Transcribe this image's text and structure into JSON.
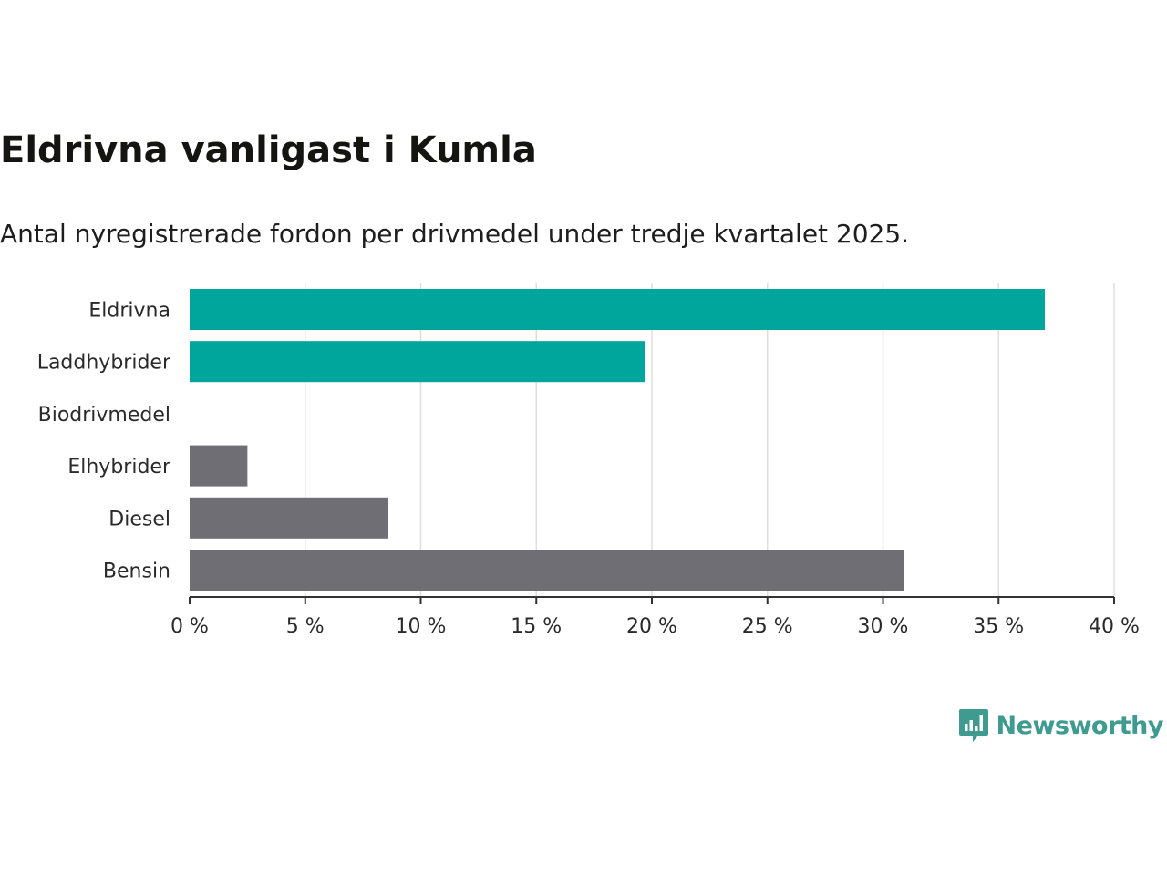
{
  "chart_data": {
    "type": "bar",
    "orientation": "horizontal",
    "title": "Eldrivna vanligast i Kumla",
    "subtitle": "Antal nyregistrerade fordon per drivmedel under tredje kvartalet 2025.",
    "categories": [
      "Eldrivna",
      "Laddhybrider",
      "Biodrivmedel",
      "Elhybrider",
      "Diesel",
      "Bensin"
    ],
    "values": [
      37.0,
      19.7,
      0,
      2.5,
      8.6,
      30.9
    ],
    "colors": [
      "#00a59b",
      "#00a59b",
      "#00a59b",
      "#6f6e74",
      "#6f6e74",
      "#6f6e74"
    ],
    "xlim": [
      0,
      40
    ],
    "xticks": [
      0,
      5,
      10,
      15,
      20,
      25,
      30,
      35,
      40
    ],
    "xtick_labels": [
      "0 %",
      "5 %",
      "10 %",
      "15 %",
      "20 %",
      "25 %",
      "30 %",
      "35 %",
      "40 %"
    ],
    "grid": true,
    "xlabel": "",
    "ylabel": ""
  },
  "branding": {
    "logo_text": "Newsworthy",
    "logo_color": "#3f9a90",
    "icon": "newsworthy-logo-icon"
  }
}
